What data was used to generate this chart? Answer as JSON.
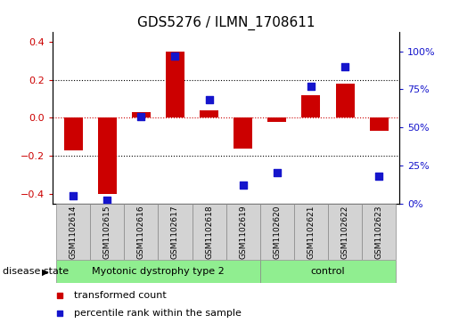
{
  "title": "GDS5276 / ILMN_1708611",
  "samples": [
    "GSM1102614",
    "GSM1102615",
    "GSM1102616",
    "GSM1102617",
    "GSM1102618",
    "GSM1102619",
    "GSM1102620",
    "GSM1102621",
    "GSM1102622",
    "GSM1102623"
  ],
  "red_bars": [
    -0.17,
    -0.4,
    0.03,
    0.35,
    0.04,
    -0.16,
    -0.02,
    0.12,
    0.18,
    -0.07
  ],
  "blue_dots": [
    5,
    2,
    57,
    97,
    68,
    12,
    20,
    77,
    90,
    18
  ],
  "group_boundary": 6,
  "group1_label": "Myotonic dystrophy type 2",
  "group2_label": "control",
  "green_color": "#90ee90",
  "ylim_left": [
    -0.45,
    0.45
  ],
  "ylim_right": [
    0,
    112.5
  ],
  "yticks_left": [
    -0.4,
    -0.2,
    0.0,
    0.2,
    0.4
  ],
  "yticks_right": [
    0,
    25,
    50,
    75,
    100
  ],
  "red_color": "#cc0000",
  "blue_color": "#1515cc",
  "bar_width": 0.55,
  "dot_size": 35,
  "hline_vals": [
    -0.2,
    0.0,
    0.2
  ],
  "disease_label": "disease state",
  "legend_red": "transformed count",
  "legend_blue": "percentile rank within the sample",
  "sample_box_color": "#d3d3d3",
  "title_fontsize": 11,
  "axis_fontsize": 8,
  "sample_fontsize": 6.5,
  "group_fontsize": 8,
  "legend_fontsize": 8,
  "disease_fontsize": 8
}
